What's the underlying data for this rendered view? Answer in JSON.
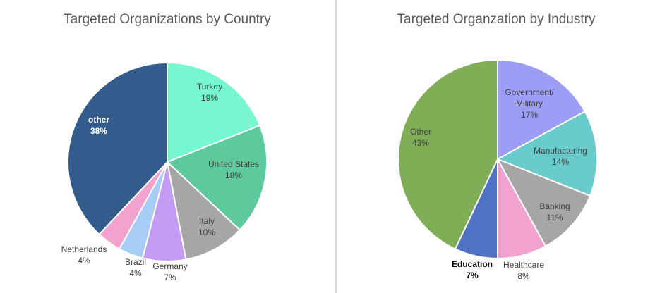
{
  "chart_data": [
    {
      "type": "pie",
      "title": "Targeted Organizations by Country",
      "slices": [
        {
          "label": "Turkey",
          "value": 19,
          "percent_label": "19%",
          "color": "#76F7CF"
        },
        {
          "label": "United States",
          "value": 18,
          "percent_label": "18%",
          "color": "#5DC99D"
        },
        {
          "label": "Italy",
          "value": 10,
          "percent_label": "10%",
          "color": "#A6A6A6"
        },
        {
          "label": "Germany",
          "value": 7,
          "percent_label": "7%",
          "color": "#C59CF4"
        },
        {
          "label": "Brazil",
          "value": 4,
          "percent_label": "4%",
          "color": "#A7CDF7"
        },
        {
          "label": "Netherlands",
          "value": 4,
          "percent_label": "4%",
          "color": "#F2A2CF"
        },
        {
          "label": "other",
          "value": 38,
          "percent_label": "38%",
          "color": "#335C8C"
        }
      ]
    },
    {
      "type": "pie",
      "title": "Targeted Organzation by Industry",
      "slices": [
        {
          "label": "Government/ Military",
          "label_lines": [
            "Government/",
            "Military"
          ],
          "value": 17,
          "percent_label": "17%",
          "color": "#9C9EF5"
        },
        {
          "label": "Manufacturing",
          "value": 14,
          "percent_label": "14%",
          "color": "#69CBCB"
        },
        {
          "label": "Banking",
          "value": 11,
          "percent_label": "11%",
          "color": "#A6A6A6"
        },
        {
          "label": "Healthcare",
          "value": 8,
          "percent_label": "8%",
          "color": "#F2A2CF"
        },
        {
          "label": "Education",
          "value": 7,
          "percent_label": "7%",
          "color": "#4F72C4"
        },
        {
          "label": "Other",
          "value": 43,
          "percent_label": "43%",
          "color": "#7FAE57"
        }
      ]
    }
  ]
}
